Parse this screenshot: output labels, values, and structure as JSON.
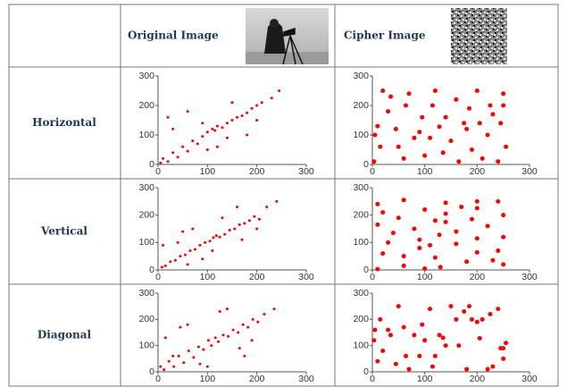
{
  "table": {
    "header": {
      "original": "Original Image",
      "cipher": "Cipher Image"
    },
    "rows": [
      {
        "label": "Horizontal",
        "original": {
          "type": "scatter",
          "color": "#ff0000",
          "xlim": [
            0,
            300
          ],
          "ylim": [
            0,
            300
          ],
          "xticks": [
            0,
            100,
            200,
            300
          ],
          "yticks": [
            0,
            100,
            200,
            300
          ],
          "x": [
            5,
            10,
            20,
            30,
            40,
            50,
            60,
            70,
            80,
            90,
            100,
            110,
            115,
            120,
            130,
            140,
            150,
            160,
            170,
            180,
            190,
            200,
            210,
            230,
            245,
            30,
            60,
            100,
            140,
            20,
            150,
            180,
            90,
            120,
            200
          ],
          "y": [
            5,
            20,
            10,
            40,
            25,
            60,
            45,
            80,
            70,
            95,
            110,
            120,
            115,
            130,
            125,
            140,
            150,
            160,
            165,
            175,
            190,
            200,
            210,
            225,
            250,
            120,
            180,
            50,
            90,
            160,
            210,
            100,
            140,
            60,
            150
          ]
        },
        "cipher": {
          "type": "scatter",
          "color": "#ff0000",
          "xlim": [
            0,
            300
          ],
          "ylim": [
            0,
            300
          ],
          "xticks": [
            0,
            100,
            200,
            300
          ],
          "yticks": [
            0,
            100,
            200,
            300
          ],
          "x": [
            3,
            250,
            128,
            64,
            190,
            30,
            220,
            100,
            160,
            10,
            240,
            80,
            140,
            200,
            50,
            175,
            115,
            20,
            230,
            90,
            255,
            60,
            150,
            210,
            35,
            120,
            185,
            5,
            245,
            70,
            135,
            225,
            45,
            165,
            95,
            250,
            15,
            205,
            110,
            180
          ],
          "y": [
            10,
            240,
            128,
            200,
            50,
            180,
            100,
            30,
            220,
            130,
            10,
            90,
            160,
            250,
            60,
            140,
            200,
            250,
            170,
            110,
            60,
            20,
            80,
            20,
            230,
            250,
            190,
            100,
            140,
            240,
            40,
            200,
            120,
            10,
            160,
            200,
            60,
            140,
            90,
            120
          ]
        }
      },
      {
        "label": "Vertical",
        "original": {
          "type": "scatter",
          "color": "#ff0000",
          "xlim": [
            0,
            300
          ],
          "ylim": [
            0,
            300
          ],
          "xticks": [
            0,
            100,
            200,
            300
          ],
          "yticks": [
            0,
            100,
            200,
            300
          ],
          "x": [
            8,
            15,
            25,
            35,
            45,
            55,
            65,
            75,
            85,
            95,
            105,
            112,
            118,
            125,
            135,
            145,
            155,
            165,
            175,
            185,
            195,
            205,
            220,
            240,
            10,
            50,
            90,
            130,
            170,
            40,
            160,
            200,
            70,
            110,
            60
          ],
          "y": [
            10,
            15,
            30,
            35,
            50,
            55,
            70,
            75,
            90,
            100,
            105,
            118,
            125,
            120,
            130,
            145,
            150,
            165,
            170,
            180,
            195,
            185,
            230,
            250,
            90,
            140,
            40,
            190,
            110,
            100,
            230,
            150,
            150,
            70,
            20
          ]
        },
        "cipher": {
          "type": "scatter",
          "color": "#ff0000",
          "xlim": [
            0,
            300
          ],
          "ylim": [
            0,
            300
          ],
          "xticks": [
            0,
            100,
            200,
            300
          ],
          "yticks": [
            0,
            100,
            200,
            300
          ],
          "x": [
            10,
            240,
            128,
            200,
            50,
            180,
            100,
            30,
            220,
            130,
            10,
            90,
            160,
            250,
            60,
            140,
            200,
            250,
            170,
            110,
            60,
            20,
            80,
            20,
            230,
            250,
            190,
            100,
            140,
            240,
            40,
            200,
            120,
            10,
            160,
            200,
            60,
            140,
            90,
            120
          ],
          "y": [
            3,
            250,
            128,
            64,
            190,
            30,
            220,
            100,
            160,
            10,
            240,
            80,
            140,
            200,
            50,
            175,
            115,
            20,
            230,
            90,
            255,
            60,
            150,
            210,
            35,
            120,
            185,
            5,
            245,
            70,
            135,
            225,
            45,
            165,
            95,
            250,
            15,
            205,
            110,
            180
          ]
        }
      },
      {
        "label": "Diagonal",
        "original": {
          "type": "scatter",
          "color": "#ff0000",
          "xlim": [
            0,
            300
          ],
          "ylim": [
            0,
            300
          ],
          "xticks": [
            0,
            100,
            200,
            300
          ],
          "yticks": [
            0,
            100,
            200,
            300
          ],
          "x": [
            5,
            12,
            22,
            32,
            42,
            52,
            62,
            72,
            82,
            92,
            102,
            108,
            116,
            122,
            132,
            142,
            152,
            162,
            172,
            182,
            192,
            202,
            215,
            235,
            15,
            45,
            85,
            125,
            165,
            30,
            140,
            190,
            60,
            100,
            175
          ],
          "y": [
            20,
            8,
            40,
            20,
            60,
            35,
            80,
            55,
            95,
            85,
            120,
            100,
            130,
            115,
            140,
            135,
            160,
            150,
            180,
            170,
            200,
            190,
            220,
            240,
            130,
            170,
            30,
            230,
            90,
            60,
            240,
            120,
            180,
            20,
            60
          ]
        },
        "cipher": {
          "type": "scatter",
          "color": "#ff0000",
          "xlim": [
            0,
            300
          ],
          "ylim": [
            0,
            300
          ],
          "xticks": [
            0,
            100,
            200,
            300
          ],
          "yticks": [
            0,
            100,
            200,
            300
          ],
          "x": [
            180,
            110,
            205,
            15,
            250,
            95,
            165,
            45,
            225,
            135,
            70,
            245,
            5,
            185,
            120,
            35,
            210,
            150,
            60,
            255,
            90,
            230,
            20,
            115,
            175,
            50,
            200,
            140,
            80,
            240,
            10,
            160,
            100,
            220,
            30,
            190,
            64,
            128,
            250,
            3
          ],
          "y": [
            10,
            240,
            128,
            200,
            50,
            180,
            100,
            30,
            220,
            130,
            10,
            90,
            160,
            250,
            60,
            140,
            200,
            250,
            170,
            110,
            60,
            20,
            80,
            20,
            230,
            250,
            190,
            100,
            140,
            240,
            40,
            200,
            120,
            10,
            160,
            200,
            60,
            140,
            90,
            120
          ]
        }
      }
    ]
  }
}
